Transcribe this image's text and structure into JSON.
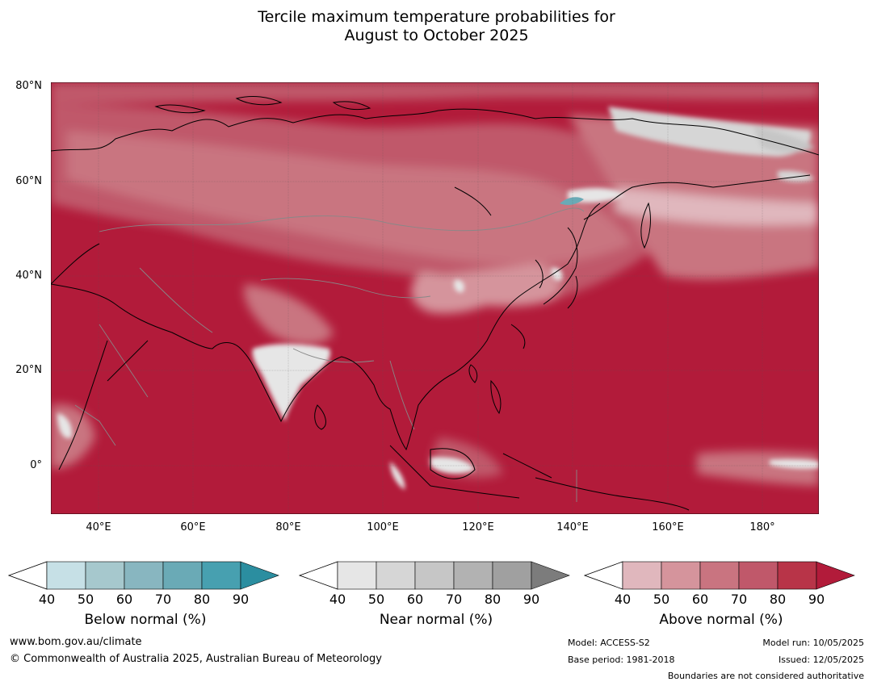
{
  "title_line1": "Tercile maximum temperature probabilities for",
  "title_line2": "August to October 2025",
  "lat_labels": [
    "80°N",
    "60°N",
    "40°N",
    "20°N",
    "0°"
  ],
  "lon_labels": [
    "40°E",
    "60°E",
    "80°E",
    "100°E",
    "120°E",
    "140°E",
    "160°E",
    "180°"
  ],
  "colorbars": [
    {
      "label": "Below normal (%)",
      "ticks": [
        "40",
        "50",
        "60",
        "70",
        "80",
        "90"
      ],
      "colors": [
        "#c6e0e6",
        "#a6c8cd",
        "#88b6c0",
        "#6aaab6",
        "#47a0b0",
        "#2b8ea0"
      ]
    },
    {
      "label": "Near normal (%)",
      "ticks": [
        "40",
        "50",
        "60",
        "70",
        "80",
        "90"
      ],
      "colors": [
        "#e6e6e6",
        "#d6d6d6",
        "#c6c6c6",
        "#b2b2b2",
        "#a0a0a0",
        "#7c7c7c"
      ]
    },
    {
      "label": "Above normal (%)",
      "ticks": [
        "40",
        "50",
        "60",
        "70",
        "80",
        "90"
      ],
      "colors": [
        "#e0b7bd",
        "#d5949c",
        "#c97480",
        "#c0586a",
        "#b83448",
        "#b21b3a"
      ]
    }
  ],
  "footer": {
    "website": "www.bom.gov.au/climate",
    "copyright": "© Commonwealth of Australia 2025, Australian Bureau of Meteorology",
    "model": "Model: ACCESS-S2",
    "base_period": "Base period: 1981-2018",
    "model_run": "Model run: 10/05/2025",
    "issued": "Issued: 12/05/2025",
    "disclaimer": "Boundaries are not considered authoritative"
  }
}
